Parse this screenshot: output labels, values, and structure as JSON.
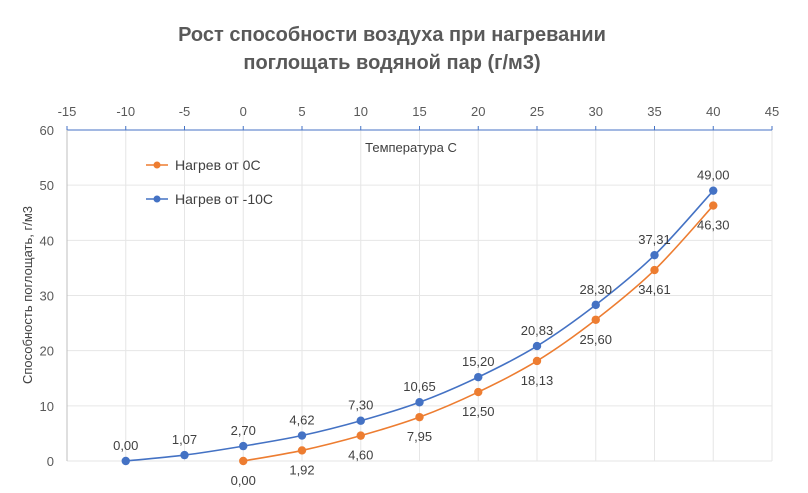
{
  "chart_data": {
    "type": "line",
    "title_line1": "Рост способности воздуха при нагревании",
    "title_line2": "поглощать водяной пар (г/м3)",
    "xlabel": "Температура C",
    "ylabel": "Способность поглощать, г/м3",
    "xlim": [
      -15,
      45
    ],
    "ylim": [
      0,
      60
    ],
    "x_ticks": [
      "-15",
      "-10",
      "-5",
      "0",
      "5",
      "10",
      "15",
      "20",
      "25",
      "30",
      "35",
      "40",
      "45"
    ],
    "y_ticks": [
      "0",
      "10",
      "20",
      "30",
      "40",
      "50",
      "60"
    ],
    "x_axis_position": "top",
    "grid": true,
    "legend_position": "top-left",
    "series": [
      {
        "name": "Нагрев от 0С",
        "color": "#ED7D31",
        "x": [
          0,
          5,
          10,
          15,
          20,
          25,
          30,
          35,
          40
        ],
        "values": [
          0.0,
          1.92,
          4.6,
          7.95,
          12.5,
          18.13,
          25.6,
          34.61,
          46.3
        ],
        "labels": [
          "0,00",
          "1,92",
          "4,60",
          "7,95",
          "12,50",
          "18,13",
          "25,60",
          "34,61",
          "46,30"
        ],
        "label_position": "below"
      },
      {
        "name": "Нагрев от -10С",
        "color": "#4472C4",
        "x": [
          -10,
          -5,
          0,
          5,
          10,
          15,
          20,
          25,
          30,
          35,
          40
        ],
        "values": [
          0.0,
          1.07,
          2.7,
          4.62,
          7.3,
          10.65,
          15.2,
          20.83,
          28.3,
          37.31,
          49.0
        ],
        "labels": [
          "0,00",
          "1,07",
          "2,70",
          "4,62",
          "7,30",
          "10,65",
          "15,20",
          "20,83",
          "28,30",
          "37,31",
          "49,00"
        ],
        "label_position": "above"
      }
    ]
  }
}
